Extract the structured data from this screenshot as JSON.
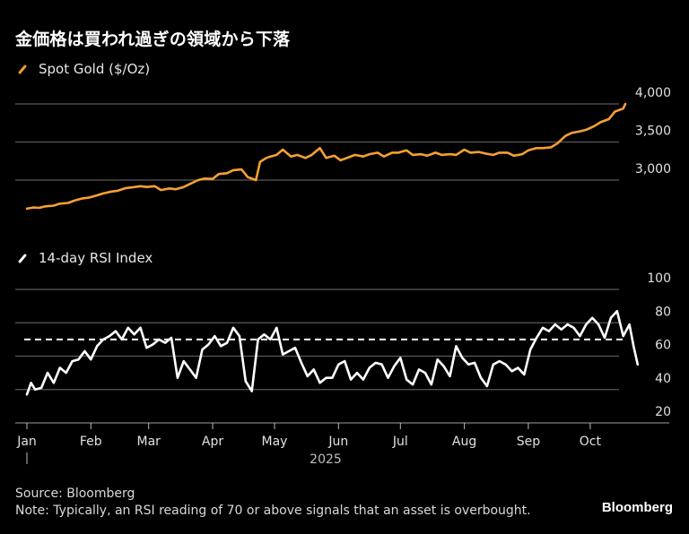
{
  "title": "金価格は買われ過ぎの領域から下落",
  "source": "Source: Bloomberg",
  "note": "Note: Typically, an RSI reading of 70 or above signals that an asset is overbought.",
  "brand": "Bloomberg",
  "colors": {
    "gold": "#f5a032",
    "rsi": "#ffffff",
    "grid": "#5a5a5a",
    "background": "#000000"
  },
  "chart_data": [
    {
      "type": "line",
      "legend": "Spot Gold ($/Oz)",
      "ylim": [
        2550,
        4400
      ],
      "yticks": [
        3000,
        3500,
        4000
      ],
      "ytick_labels": [
        "3,000",
        "3,500",
        "4,000"
      ],
      "grid": true,
      "x_unit": "day of 2025",
      "series": [
        {
          "name": "Spot Gold ($/Oz)",
          "x": [
            0,
            3,
            6,
            9,
            13,
            16,
            20,
            23,
            27,
            30,
            34,
            37,
            41,
            44,
            48,
            51,
            55,
            58,
            62,
            65,
            69,
            72,
            76,
            79,
            83,
            86,
            90,
            93,
            97,
            100,
            104,
            107,
            111,
            113,
            116,
            118,
            121,
            124,
            128,
            131,
            135,
            138,
            142,
            145,
            149,
            152,
            156,
            159,
            163,
            166,
            170,
            173,
            177,
            180,
            184,
            187,
            191,
            194,
            198,
            201,
            205,
            208,
            212,
            215,
            219,
            222,
            226,
            229,
            233,
            236,
            240,
            243,
            247,
            250,
            254,
            257,
            261,
            264,
            268,
            271,
            275,
            278,
            282,
            285,
            289,
            290
          ],
          "y": [
            2625,
            2640,
            2635,
            2655,
            2665,
            2690,
            2700,
            2730,
            2760,
            2770,
            2800,
            2825,
            2850,
            2860,
            2895,
            2905,
            2920,
            2910,
            2920,
            2870,
            2890,
            2880,
            2910,
            2950,
            3000,
            3020,
            3015,
            3080,
            3090,
            3130,
            3140,
            3040,
            3000,
            3240,
            3290,
            3310,
            3330,
            3400,
            3310,
            3330,
            3290,
            3330,
            3420,
            3290,
            3320,
            3260,
            3300,
            3330,
            3310,
            3340,
            3360,
            3310,
            3360,
            3360,
            3390,
            3330,
            3340,
            3320,
            3360,
            3330,
            3340,
            3330,
            3400,
            3360,
            3370,
            3350,
            3330,
            3360,
            3360,
            3320,
            3340,
            3390,
            3420,
            3420,
            3430,
            3480,
            3580,
            3620,
            3640,
            3660,
            3710,
            3760,
            3800,
            3900,
            3940,
            4000
          ]
        }
      ]
    },
    {
      "type": "line",
      "legend": "14-day RSI Index",
      "ylim": [
        20,
        100
      ],
      "yticks": [
        20,
        40,
        60,
        80,
        100
      ],
      "ytick_labels": [
        "20",
        "40",
        "60",
        "80",
        "100"
      ],
      "reference_line": {
        "value": 70,
        "style": "dashed"
      },
      "grid": true,
      "series": [
        {
          "name": "14-day RSI Index",
          "x": [
            0,
            2,
            4,
            7,
            10,
            13,
            16,
            19,
            22,
            25,
            28,
            31,
            34,
            37,
            40,
            43,
            46,
            49,
            52,
            55,
            58,
            61,
            64,
            67,
            70,
            73,
            76,
            79,
            82,
            85,
            88,
            91,
            94,
            97,
            100,
            103,
            106,
            109,
            112,
            115,
            118,
            121,
            124,
            127,
            130,
            133,
            136,
            139,
            142,
            145,
            148,
            151,
            154,
            157,
            160,
            163,
            166,
            169,
            172,
            175,
            178,
            181,
            184,
            187,
            190,
            193,
            196,
            199,
            202,
            205,
            208,
            211,
            214,
            217,
            220,
            223,
            226,
            229,
            232,
            235,
            238,
            241,
            244,
            247,
            250,
            253,
            256,
            259,
            262,
            265,
            268,
            271,
            274,
            277,
            280,
            283,
            286,
            289,
            292,
            294,
            296
          ],
          "y": [
            37,
            44,
            40,
            41,
            50,
            44,
            53,
            50,
            57,
            58,
            63,
            58,
            66,
            70,
            72,
            75,
            70,
            77,
            73,
            77,
            65,
            67,
            70,
            68,
            71,
            47,
            57,
            52,
            47,
            64,
            67,
            72,
            66,
            68,
            77,
            72,
            45,
            39,
            70,
            73,
            70,
            77,
            61,
            63,
            65,
            56,
            48,
            52,
            44,
            47,
            47,
            55,
            57,
            46,
            50,
            46,
            53,
            56,
            55,
            47,
            54,
            59,
            46,
            43,
            52,
            50,
            43,
            58,
            54,
            48,
            66,
            59,
            55,
            56,
            47,
            42,
            55,
            57,
            55,
            51,
            53,
            49,
            64,
            71,
            77,
            75,
            79,
            76,
            79,
            77,
            72,
            79,
            83,
            79,
            71,
            83,
            87,
            72,
            79,
            66,
            55
          ]
        }
      ]
    }
  ],
  "x_axis": {
    "months": [
      "Jan",
      "Feb",
      "Mar",
      "Apr",
      "May",
      "Jun",
      "Jul",
      "Aug",
      "Sep",
      "Oct"
    ],
    "month_days": [
      0,
      31,
      59,
      90,
      120,
      151,
      181,
      212,
      243,
      273
    ],
    "year_label": "2025",
    "xlim": [
      0,
      305
    ]
  }
}
